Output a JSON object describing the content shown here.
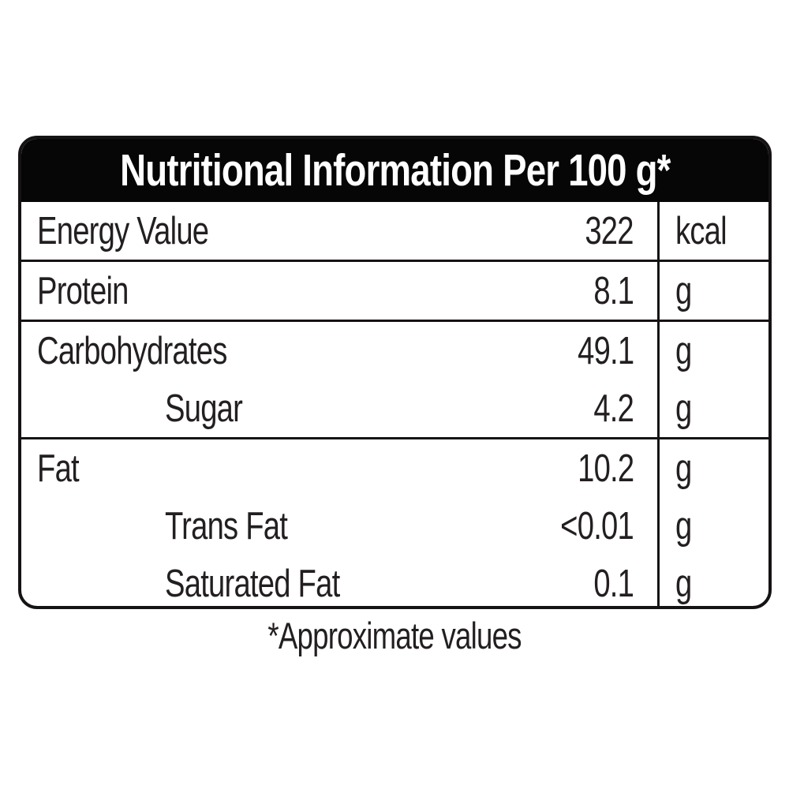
{
  "header": {
    "title": "Nutritional Information Per 100 g*"
  },
  "table": {
    "sections": [
      {
        "rows": [
          {
            "label": "Energy Value",
            "value": "322",
            "unit": "kcal",
            "indent": false
          }
        ]
      },
      {
        "rows": [
          {
            "label": "Protein",
            "value": "8.1",
            "unit": "g",
            "indent": false
          }
        ]
      },
      {
        "rows": [
          {
            "label": "Carbohydrates",
            "value": "49.1",
            "unit": "g",
            "indent": false
          },
          {
            "label": "Sugar",
            "value": "4.2",
            "unit": "g",
            "indent": true
          }
        ]
      },
      {
        "rows": [
          {
            "label": "Fat",
            "value": "10.2",
            "unit": "g",
            "indent": false
          },
          {
            "label": "Trans Fat",
            "value": "<0.01",
            "unit": "g",
            "indent": true
          },
          {
            "label": "Saturated Fat",
            "value": "0.1",
            "unit": "g",
            "indent": true
          }
        ]
      }
    ]
  },
  "footer": {
    "note": "*Approximate values"
  },
  "colors": {
    "header_bg": "#060606",
    "header_text": "#ffffff",
    "border": "#161314",
    "text": "#231f20",
    "background": "#ffffff"
  }
}
